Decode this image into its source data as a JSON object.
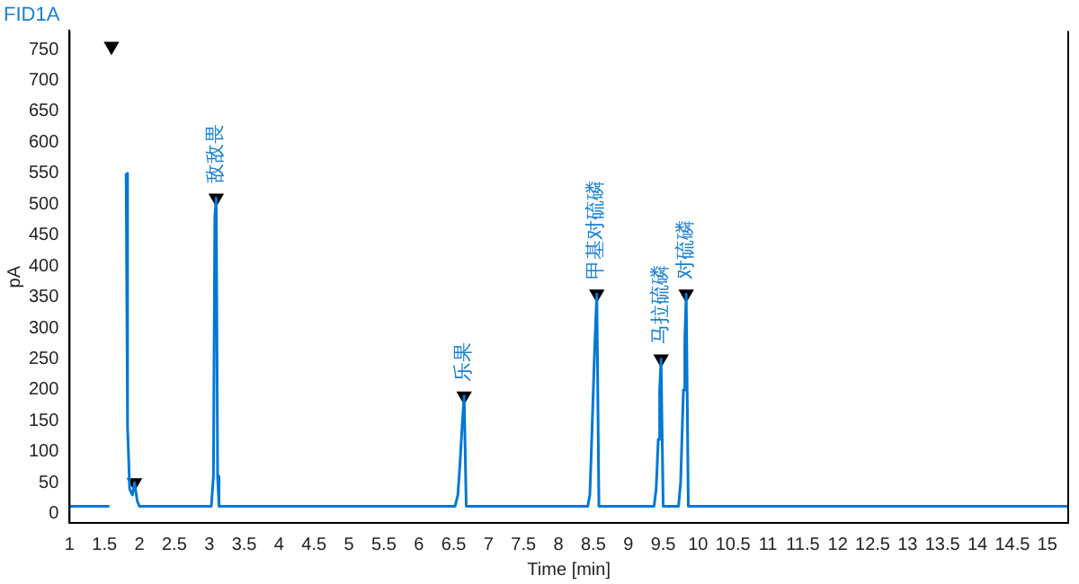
{
  "chart_data": {
    "type": "line",
    "title": "FID1A",
    "xlabel": "Time [min]",
    "ylabel": "pA",
    "xlim": [
      1,
      15.3
    ],
    "xticks": [
      1,
      1.5,
      2,
      2.5,
      3,
      3.5,
      4,
      4.5,
      5,
      5.5,
      6,
      6.5,
      7,
      7.5,
      8,
      8.5,
      9,
      9.5,
      10,
      10.5,
      11,
      11.5,
      12,
      12.5,
      13,
      13.5,
      14,
      14.5,
      15
    ],
    "ylim": [
      -15,
      780
    ],
    "yticks": [
      0,
      50,
      100,
      150,
      200,
      250,
      300,
      350,
      400,
      450,
      500,
      550,
      600,
      650,
      700,
      750
    ],
    "grid": false,
    "legend": false,
    "series": [
      {
        "color": "#0078d4",
        "marker": "none",
        "x": [
          1,
          1.57,
          1.58,
          1.8,
          1.81,
          1.83,
          1.84,
          1.86,
          1.9,
          1.93,
          1.97,
          2.0,
          3.03,
          3.06,
          3.08,
          3.1,
          3.12,
          3.14,
          6.52,
          6.56,
          6.59,
          6.62,
          6.65,
          6.68,
          8.42,
          8.45,
          8.48,
          8.52,
          8.55,
          8.58,
          9.37,
          9.4,
          9.43,
          9.45,
          9.47,
          9.5,
          9.72,
          9.75,
          9.79,
          9.81,
          9.83,
          9.86,
          15.3
        ],
        "values": [
          12,
          12,
          null,
          null,
          550,
          140,
          110,
          40,
          30,
          50,
          20,
          12,
          12,
          60,
          480,
          510,
          60,
          12,
          12,
          30,
          80,
          140,
          190,
          12,
          12,
          30,
          130,
          270,
          355,
          12,
          12,
          40,
          120,
          200,
          250,
          12,
          12,
          50,
          200,
          280,
          355,
          12,
          12
        ]
      },
      {
        "type": "scatter",
        "color": "#000000",
        "marker": "triangle",
        "x": [
          1.6,
          1.93,
          3.1,
          6.65,
          8.55,
          9.47,
          9.83
        ],
        "values": [
          755,
          50,
          510,
          190,
          355,
          250,
          355
        ]
      }
    ],
    "annotations": [
      {
        "text": "敌敌畏",
        "x": 3.1,
        "y": 510
      },
      {
        "text": "乐果",
        "x": 6.65,
        "y": 190
      },
      {
        "text": "甲基对硫磷",
        "x": 8.55,
        "y": 355
      },
      {
        "text": "马拉硫磷",
        "x": 9.47,
        "y": 250
      },
      {
        "text": "对硫磷",
        "x": 9.83,
        "y": 355
      }
    ]
  }
}
